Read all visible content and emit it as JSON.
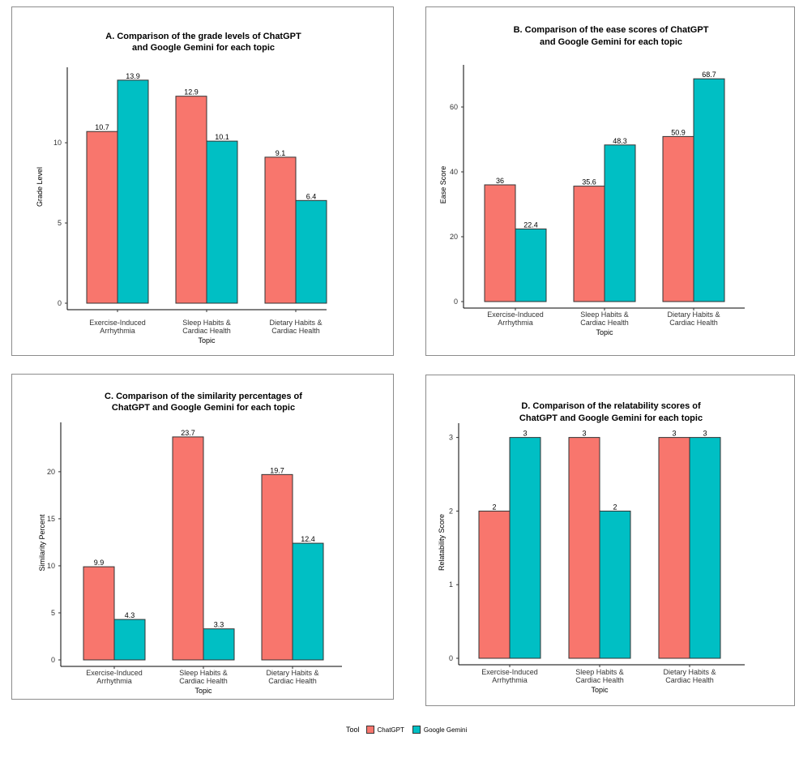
{
  "colors": {
    "chatgpt": "#F8766D",
    "gemini": "#00BFC4"
  },
  "legend": {
    "title": "Tool",
    "items": [
      "ChatGPT",
      "Google Gemini"
    ]
  },
  "chart_data": [
    {
      "type": "bar",
      "title_lines": [
        "A. Comparison of the grade levels of ChatGPT",
        "and Google Gemini for each topic"
      ],
      "categories": [
        [
          "Exercise-Induced",
          "Arrhythmia"
        ],
        [
          "Sleep Habits &",
          "Cardiac Health"
        ],
        [
          "Dietary Habits &",
          "Cardiac Health"
        ]
      ],
      "xlabel": "Topic",
      "ylabel": "Grade Level",
      "yticks": [
        0,
        5,
        10
      ],
      "ylim": [
        0,
        14.5
      ],
      "series": [
        {
          "name": "ChatGPT",
          "values": [
            10.7,
            12.9,
            9.1
          ],
          "labels": [
            "10.7",
            "12.9",
            "9.1"
          ]
        },
        {
          "name": "Google Gemini",
          "values": [
            13.9,
            10.1,
            6.4
          ],
          "labels": [
            "13.9",
            "10.1",
            "6.4"
          ]
        }
      ],
      "grid": false
    },
    {
      "type": "bar",
      "title_lines": [
        "B. Comparison of the ease scores of ChatGPT",
        "and Google Gemini for each topic"
      ],
      "categories": [
        [
          "Exercise-Induced",
          "Arrhythmia"
        ],
        [
          "Sleep Habits &",
          "Cardiac Health"
        ],
        [
          "Dietary Habits &",
          "Cardiac Health"
        ]
      ],
      "xlabel": "Topic",
      "ylabel": "Ease Score",
      "yticks": [
        0,
        20,
        40,
        60
      ],
      "ylim": [
        0,
        72
      ],
      "series": [
        {
          "name": "ChatGPT",
          "values": [
            36,
            35.6,
            50.9
          ],
          "labels": [
            "36",
            "35.6",
            "50.9"
          ]
        },
        {
          "name": "Google Gemini",
          "values": [
            22.4,
            48.3,
            68.7
          ],
          "labels": [
            "22.4",
            "48.3",
            "68.7"
          ]
        }
      ],
      "grid": false
    },
    {
      "type": "bar",
      "title_lines": [
        "C. Comparison of the similarity percentages of",
        "ChatGPT and Google Gemini for each topic"
      ],
      "categories": [
        [
          "Exercise-Induced",
          "Arrhythmia"
        ],
        [
          "Sleep Habits &",
          "Cardiac Health"
        ],
        [
          "Dietary Habits &",
          "Cardiac Health"
        ]
      ],
      "xlabel": "Topic",
      "ylabel": "Similarity Percent",
      "yticks": [
        0,
        5,
        10,
        15,
        20
      ],
      "ylim": [
        0,
        24.9
      ],
      "series": [
        {
          "name": "ChatGPT",
          "values": [
            9.9,
            23.7,
            19.7
          ],
          "labels": [
            "9.9",
            "23.7",
            "19.7"
          ]
        },
        {
          "name": "Google Gemini",
          "values": [
            4.3,
            3.3,
            12.4
          ],
          "labels": [
            "4.3",
            "3.3",
            "12.4"
          ]
        }
      ],
      "grid": false
    },
    {
      "type": "bar",
      "title_lines": [
        "D. Comparison of the relatability scores of",
        "ChatGPT and Google Gemini for each topic"
      ],
      "categories": [
        [
          "Exercise-Induced",
          "Arrhythmia"
        ],
        [
          "Sleep Habits &",
          "Cardiac Health"
        ],
        [
          "Dietary Habits &",
          "Cardiac Health"
        ]
      ],
      "xlabel": "Topic",
      "ylabel": "Relatability Score",
      "yticks": [
        0,
        1,
        2,
        3
      ],
      "ylim": [
        0,
        3.15
      ],
      "series": [
        {
          "name": "ChatGPT",
          "values": [
            2,
            3,
            3
          ],
          "labels": [
            "2",
            "3",
            "3"
          ]
        },
        {
          "name": "Google Gemini",
          "values": [
            3,
            2,
            3
          ],
          "labels": [
            "3",
            "2",
            "3"
          ]
        }
      ],
      "grid": false
    }
  ]
}
